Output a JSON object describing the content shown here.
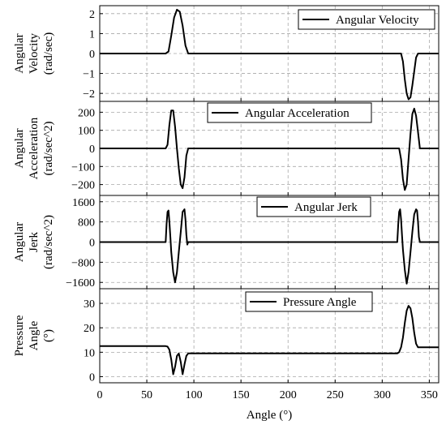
{
  "chart_data": [
    {
      "type": "line",
      "ylabel": [
        "Angular",
        "Velocity",
        "(rad/sec)"
      ],
      "legend": "Angular Velocity",
      "legend_position": "top-right",
      "xlim": [
        0,
        360
      ],
      "ylim": [
        -2.4,
        2.4
      ],
      "yticks": [
        -2,
        -1,
        0,
        1,
        2
      ],
      "yticklabels": [
        "−2",
        "−1",
        "0",
        "1",
        "2"
      ],
      "grid": true,
      "series": [
        {
          "values_x": [
            0,
            70,
            73,
            76,
            79,
            82,
            85,
            88,
            91,
            94,
            320,
            322,
            324,
            326,
            328,
            330,
            332,
            334,
            336,
            338,
            360
          ],
          "values_y": [
            0,
            0,
            0.1,
            0.9,
            1.8,
            2.2,
            2.1,
            1.4,
            0.4,
            0,
            0,
            -0.4,
            -1.3,
            -2.0,
            -2.3,
            -2.2,
            -1.6,
            -0.9,
            -0.2,
            0,
            0
          ]
        }
      ]
    },
    {
      "type": "line",
      "ylabel": [
        "Angular",
        "Acceleration",
        "(rad/sec^2)"
      ],
      "legend": "Angular Acceleration",
      "legend_position": "top-right",
      "xlim": [
        0,
        360
      ],
      "ylim": [
        -260,
        260
      ],
      "yticks": [
        -200,
        -100,
        0,
        100,
        200
      ],
      "yticklabels": [
        "−200",
        "−100",
        "0",
        "100",
        "200"
      ],
      "grid": true,
      "series": [
        {
          "values_x": [
            0,
            70,
            72,
            74,
            76,
            78,
            80,
            82,
            84,
            86,
            88,
            90,
            92,
            94,
            318,
            320,
            322,
            324,
            326,
            328,
            330,
            332,
            334,
            336,
            338,
            340,
            360
          ],
          "values_y": [
            0,
            0,
            20,
            130,
            210,
            210,
            120,
            0,
            -110,
            -200,
            -220,
            -160,
            -40,
            0,
            0,
            -60,
            -170,
            -230,
            -200,
            -60,
            80,
            190,
            220,
            180,
            90,
            0,
            0
          ]
        }
      ]
    },
    {
      "type": "line",
      "ylabel": [
        "Angular",
        "Jerk",
        "(rad/sec^2)"
      ],
      "legend": "Angular Jerk",
      "legend_position": "top-right",
      "xlim": [
        0,
        360
      ],
      "ylim": [
        -1850,
        1850
      ],
      "yticks": [
        -1600,
        -800,
        0,
        800,
        1600
      ],
      "yticklabels": [
        "−1600",
        "−800",
        "0",
        "800",
        "1600"
      ],
      "grid": true,
      "series": [
        {
          "values_x": [
            0,
            70,
            71,
            72,
            73,
            74,
            75,
            76,
            78,
            80,
            82,
            84,
            86,
            88,
            90,
            91,
            92,
            93,
            94,
            95,
            316,
            317,
            318,
            319,
            320,
            321,
            322,
            324,
            326,
            328,
            330,
            332,
            334,
            336,
            337,
            338,
            339,
            340,
            341,
            360
          ],
          "values_y": [
            0,
            0,
            700,
            1200,
            1250,
            800,
            200,
            -400,
            -1200,
            -1600,
            -1200,
            -400,
            400,
            1200,
            1300,
            900,
            300,
            -100,
            0,
            0,
            0,
            700,
            1200,
            1300,
            900,
            300,
            -300,
            -1100,
            -1650,
            -1200,
            -400,
            400,
            1100,
            1300,
            1250,
            800,
            200,
            0,
            0,
            0
          ]
        }
      ]
    },
    {
      "type": "line",
      "ylabel": [
        "Pressure",
        "Angle",
        "(°)"
      ],
      "legend": "Pressure Angle",
      "legend_position": "top-right",
      "xlabel": "Angle (°)",
      "xlim": [
        0,
        360
      ],
      "xticks": [
        0,
        50,
        100,
        150,
        200,
        250,
        300,
        350
      ],
      "ylim": [
        -2.5,
        36
      ],
      "yticks": [
        0,
        10,
        20,
        30
      ],
      "yticklabels": [
        "0",
        "10",
        "20",
        "30"
      ],
      "grid": true,
      "series": [
        {
          "values_x": [
            0,
            70,
            72,
            74,
            76,
            78,
            80,
            82,
            84,
            86,
            88,
            90,
            92,
            94,
            316,
            318,
            320,
            322,
            324,
            326,
            328,
            330,
            332,
            334,
            336,
            338,
            340,
            360
          ],
          "values_y": [
            12.5,
            12.5,
            12.3,
            11,
            7,
            1,
            4,
            8.5,
            9.5,
            6,
            1,
            5,
            8.5,
            9.5,
            9.5,
            10,
            12,
            16,
            22,
            27,
            29,
            28,
            24,
            18,
            13.5,
            12,
            12,
            12
          ]
        }
      ]
    }
  ]
}
